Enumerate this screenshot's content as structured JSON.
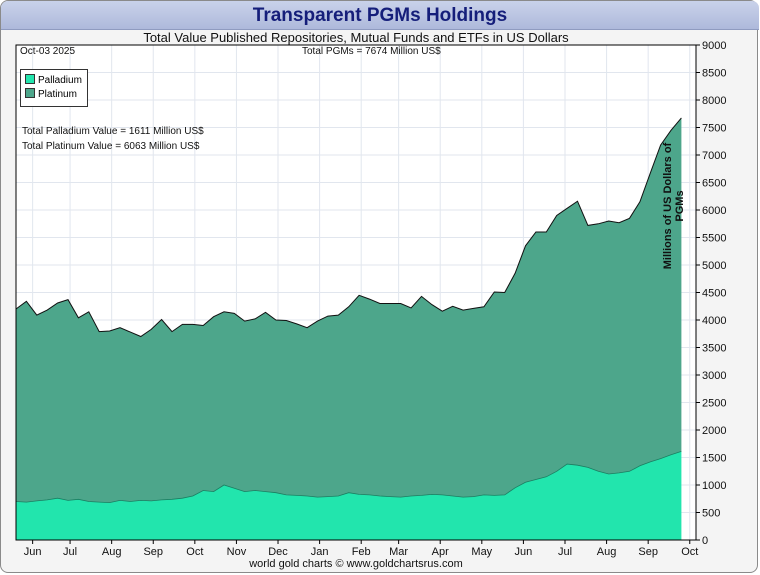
{
  "header": {
    "title": "Transparent PGMs Holdings",
    "subtitle": "Total Value Published Repositories, Mutual Funds and ETFs in US Dollars",
    "footer": "world gold charts © www.goldchartsrus.com"
  },
  "annotations": {
    "date": "Oct-03  2025",
    "total_pgms": "Total PGMs = 7674 Million US$",
    "palladium_total": "Total Palladium Value = 1611 Million US$",
    "platinum_total": "Total Platinum Value = 6063 Million US$"
  },
  "colors": {
    "palladium": "#22e5ad",
    "platinum": "#4da68b",
    "line": "#111111",
    "grid": "#e1e6ee"
  },
  "chart_data": {
    "type": "area",
    "title": "Transparent PGMs Holdings",
    "subtitle": "Total Value Published Repositories, Mutual Funds and ETFs in US Dollars",
    "ylabel": "Millions of US Dollars of PGMs",
    "xlabel": "",
    "stacked": true,
    "ylim": [
      0,
      9000
    ],
    "yticks": [
      0,
      500,
      1000,
      1500,
      2000,
      2500,
      3000,
      3500,
      4000,
      4500,
      5000,
      5500,
      6000,
      6500,
      7000,
      7500,
      8000,
      8500,
      9000
    ],
    "x_tick_labels": [
      "Jun",
      "Jul",
      "Aug",
      "Sep",
      "Oct",
      "Nov",
      "Dec",
      "Jan",
      "Feb",
      "Mar",
      "Apr",
      "May",
      "Jun",
      "Jul",
      "Aug",
      "Sep",
      "Oct"
    ],
    "grid": true,
    "legend_position": "top-left",
    "x_unit": "months",
    "x": [
      0,
      0.25,
      0.5,
      0.75,
      1,
      1.25,
      1.5,
      1.75,
      2,
      2.25,
      2.5,
      2.75,
      3,
      3.25,
      3.5,
      3.75,
      4,
      4.25,
      4.5,
      4.75,
      5,
      5.25,
      5.5,
      5.75,
      6,
      6.25,
      6.5,
      6.75,
      7,
      7.25,
      7.5,
      7.75,
      8,
      8.25,
      8.5,
      8.75,
      9,
      9.25,
      9.5,
      9.75,
      10,
      10.25,
      10.5,
      10.75,
      11,
      11.25,
      11.5,
      11.75,
      12,
      12.25,
      12.5,
      12.75,
      13,
      13.25,
      13.5,
      13.75,
      14,
      14.25,
      14.5,
      14.75,
      15,
      15.25,
      15.5,
      15.75,
      16
    ],
    "x_tick_positions": [
      0.4,
      1.3,
      2.3,
      3.3,
      4.3,
      5.3,
      6.3,
      7.3,
      8.3,
      9.2,
      10.2,
      11.2,
      12.2,
      13.2,
      14.2,
      15.2,
      16.2
    ],
    "series": [
      {
        "name": "Palladium",
        "values": [
          700,
          690,
          710,
          730,
          760,
          720,
          740,
          700,
          690,
          680,
          720,
          700,
          720,
          710,
          730,
          740,
          760,
          800,
          900,
          880,
          1000,
          940,
          880,
          900,
          880,
          860,
          820,
          810,
          800,
          780,
          790,
          800,
          860,
          830,
          820,
          800,
          790,
          780,
          800,
          810,
          830,
          820,
          800,
          780,
          790,
          820,
          810,
          820,
          950,
          1050,
          1100,
          1150,
          1250,
          1380,
          1360,
          1320,
          1250,
          1200,
          1220,
          1250,
          1350,
          1420,
          1480,
          1550,
          1611
        ]
      },
      {
        "name": "Platinum",
        "values": [
          3500,
          3650,
          3380,
          3450,
          3550,
          3650,
          3300,
          3450,
          3100,
          3120,
          3140,
          3080,
          2980,
          3120,
          3280,
          3050,
          3160,
          3120,
          3000,
          3180,
          3150,
          3180,
          3100,
          3120,
          3260,
          3140,
          3170,
          3120,
          3060,
          3200,
          3280,
          3290,
          3380,
          3620,
          3560,
          3500,
          3510,
          3520,
          3420,
          3620,
          3450,
          3340,
          3450,
          3400,
          3420,
          3420,
          3700,
          3680,
          3900,
          4300,
          4500,
          4450,
          4650,
          4650,
          4800,
          4400,
          4500,
          4600,
          4550,
          4600,
          4800,
          5250,
          5700,
          5900,
          6063
        ]
      }
    ]
  }
}
